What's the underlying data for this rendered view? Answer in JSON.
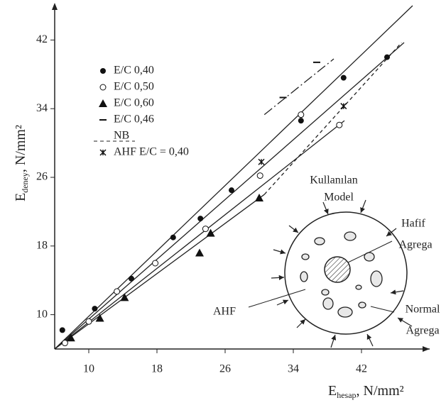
{
  "chart_data": {
    "type": "scatter",
    "x_label": {
      "main": "E",
      "sub": "hesap",
      "unit": ", N/mm²"
    },
    "y_label": {
      "main": "E",
      "sub": "deney",
      "unit": ", N/mm²"
    },
    "xlim": [
      6,
      49
    ],
    "ylim": [
      6,
      46
    ],
    "xticks": [
      10,
      18,
      26,
      34,
      42
    ],
    "yticks": [
      10,
      18,
      26,
      34,
      42
    ],
    "series": [
      {
        "name": "E/C   0,40",
        "marker": "filled-circle",
        "color": "#111",
        "x": [
          6.9,
          10.7,
          15,
          19.9,
          23.1,
          26.75,
          34.9,
          39.9,
          45
        ],
        "y": [
          8.2,
          10.7,
          14.2,
          19,
          21.2,
          24.5,
          32.6,
          37.6,
          40
        ]
      },
      {
        "name": "E/C   0,50",
        "marker": "open-circle",
        "color": "#111",
        "x": [
          7.2,
          10,
          13.3,
          17.8,
          23.7,
          30.1,
          34.9,
          39.4
        ],
        "y": [
          6.7,
          9.2,
          12.7,
          16,
          20,
          26.2,
          33.3,
          32.1
        ]
      },
      {
        "name": "E/C   0,60",
        "marker": "triangle",
        "color": "#111",
        "x": [
          7.9,
          11.3,
          14.2,
          23,
          24.3,
          30
        ],
        "y": [
          7.3,
          9.6,
          12,
          17.2,
          19.5,
          23.6
        ]
      },
      {
        "name": "E/C   0,46",
        "marker": "dash",
        "color": "#111",
        "x": [
          32.8,
          36.75
        ],
        "y": [
          35.3,
          39.4
        ]
      },
      {
        "name": "AHF E/C = 0,40",
        "marker": "star",
        "color": "#111",
        "x": [
          30.25,
          39.9
        ],
        "y": [
          27.8,
          34.3
        ]
      }
    ],
    "lines": [
      {
        "x": [
          6,
          48
        ],
        "y": [
          6,
          46
        ],
        "style": "solid"
      },
      {
        "x": [
          6,
          47
        ],
        "y": [
          6,
          41.7
        ],
        "style": "solid"
      },
      {
        "x": [
          30.6,
          38.75
        ],
        "y": [
          33.3,
          39.8
        ],
        "style": "dashdot"
      },
      {
        "x": [
          6,
          40
        ],
        "y": [
          6,
          32.6
        ],
        "style": "solid"
      },
      {
        "x": [
          6,
          30.6
        ],
        "y": [
          6,
          24
        ],
        "style": "solid"
      },
      {
        "name": "NB",
        "x": [
          30.6,
          46.7
        ],
        "y": [
          24,
          41.7
        ],
        "style": "dashed"
      }
    ],
    "diagram": {
      "title": [
        "Kullanılan",
        "Model"
      ],
      "light": [
        "Hafif",
        "Agrega"
      ],
      "normal": [
        "Normal",
        "Agrega"
      ],
      "matrix": "AHF"
    }
  }
}
